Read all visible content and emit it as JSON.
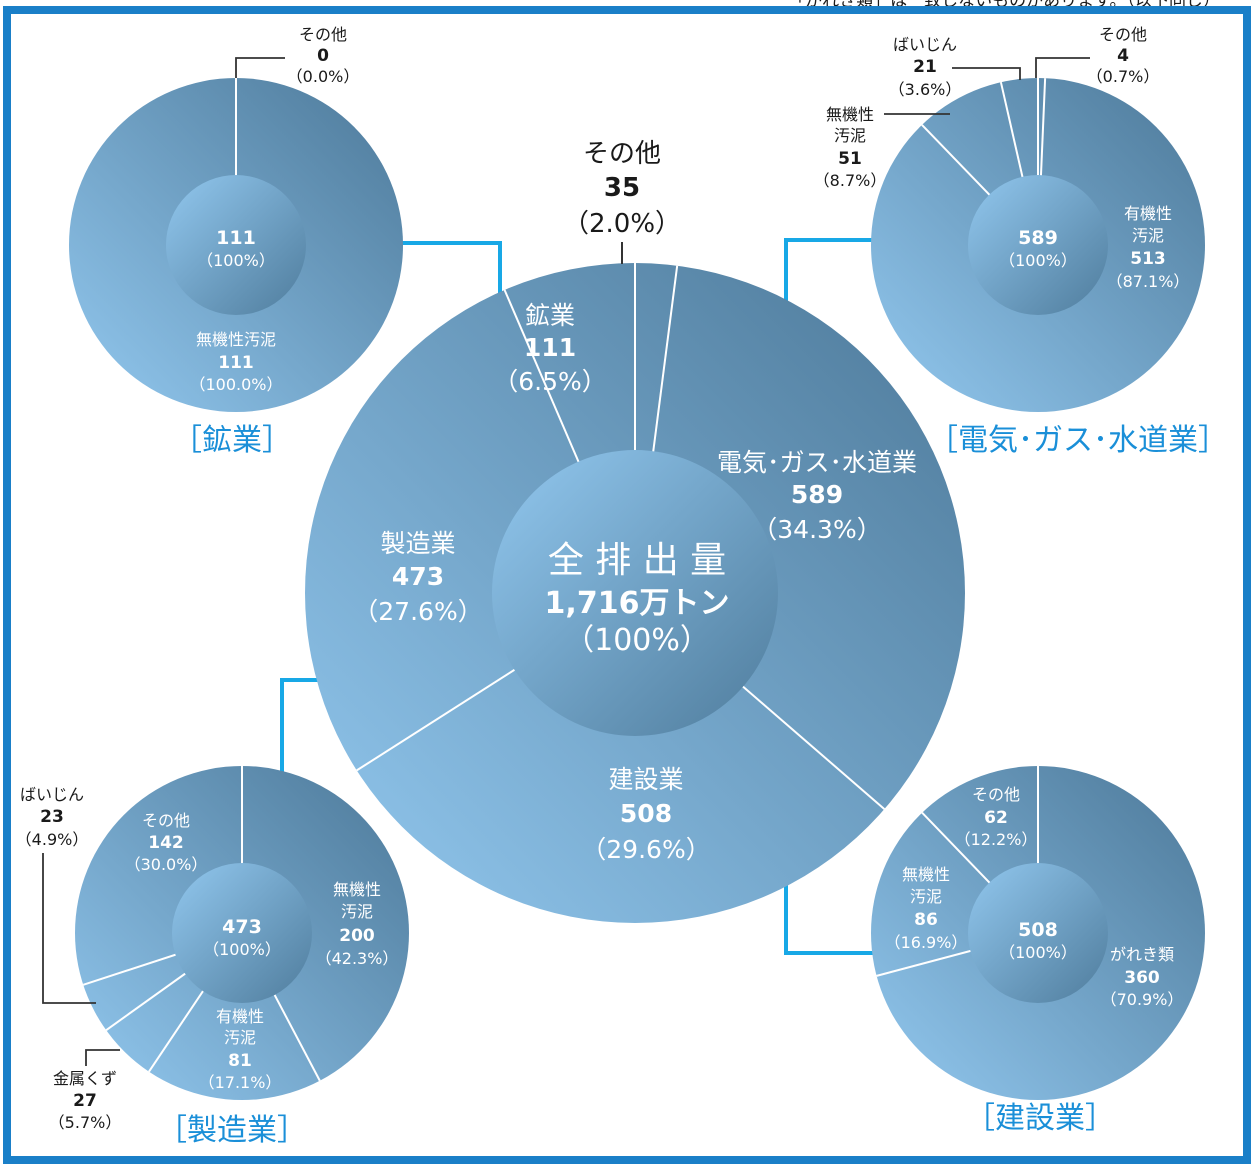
{
  "header_text": "「がれき類」は一致しないものがあります。（以下同じ）",
  "colors": {
    "frame": "#1a7fc8",
    "arrow": "#18a8e6",
    "pie_light": "#8cc4ee",
    "pie_dark": "#4d7a9a",
    "title": "#1a8fd8"
  },
  "chart_data": [
    {
      "id": "main",
      "type": "pie",
      "center": {
        "line1": "全 排 出 量",
        "line2": "1,716万トン",
        "line3": "（100%）"
      },
      "categories": [
        "その他",
        "電気･ガス･水道業",
        "建設業",
        "製造業",
        "鉱業"
      ],
      "values": [
        35,
        589,
        508,
        473,
        111
      ],
      "percent_labels": [
        "（2.0%）",
        "（34.3%）",
        "（29.6%）",
        "（27.6%）",
        "（6.5%）"
      ],
      "value_labels": [
        "35",
        "589",
        "508",
        "473",
        "111"
      ]
    },
    {
      "id": "mining",
      "type": "pie",
      "title": "［鉱業］",
      "center": {
        "value": "111",
        "percent": "（100%）"
      },
      "categories": [
        "その他",
        "無機性汚泥"
      ],
      "values": [
        0,
        111
      ],
      "value_labels": [
        "0",
        "111"
      ],
      "percent_labels": [
        "（0.0%）",
        "（100.0%）"
      ]
    },
    {
      "id": "utilities",
      "type": "pie",
      "title": "［電気･ガス･水道業］",
      "center": {
        "value": "589",
        "percent": "（100%）"
      },
      "categories": [
        "その他",
        "有機性汚泥",
        "無機性汚泥",
        "ばいじん"
      ],
      "label_lines": [
        [
          "その他"
        ],
        [
          "有機性",
          "汚泥"
        ],
        [
          "無機性",
          "汚泥"
        ],
        [
          "ばいじん"
        ]
      ],
      "values": [
        4,
        513,
        51,
        21
      ],
      "value_labels": [
        "4",
        "513",
        "51",
        "21"
      ],
      "percent_labels": [
        "（0.7%）",
        "（87.1%）",
        "（8.7%）",
        "（3.6%）"
      ]
    },
    {
      "id": "manufacturing",
      "type": "pie",
      "title": "［製造業］",
      "center": {
        "value": "473",
        "percent": "（100%）"
      },
      "categories": [
        "無機性汚泥",
        "有機性汚泥",
        "金属くず",
        "ばいじん",
        "その他"
      ],
      "label_lines": [
        [
          "無機性",
          "汚泥"
        ],
        [
          "有機性",
          "汚泥"
        ],
        [
          "金属くず"
        ],
        [
          "ばいじん"
        ],
        [
          "その他"
        ]
      ],
      "values": [
        200,
        81,
        27,
        23,
        142
      ],
      "value_labels": [
        "200",
        "81",
        "27",
        "23",
        "142"
      ],
      "percent_labels": [
        "（42.3%）",
        "（17.1%）",
        "（5.7%）",
        "（4.9%）",
        "（30.0%）"
      ]
    },
    {
      "id": "construction",
      "type": "pie",
      "title": "［建設業］",
      "center": {
        "value": "508",
        "percent": "（100%）"
      },
      "categories": [
        "がれき類",
        "無機性汚泥",
        "その他"
      ],
      "label_lines": [
        [
          "がれき類"
        ],
        [
          "無機性",
          "汚泥"
        ],
        [
          "その他"
        ]
      ],
      "values": [
        360,
        86,
        62
      ],
      "value_labels": [
        "360",
        "86",
        "62"
      ],
      "percent_labels": [
        "（70.9%）",
        "（16.9%）",
        "（12.2%）"
      ]
    }
  ]
}
